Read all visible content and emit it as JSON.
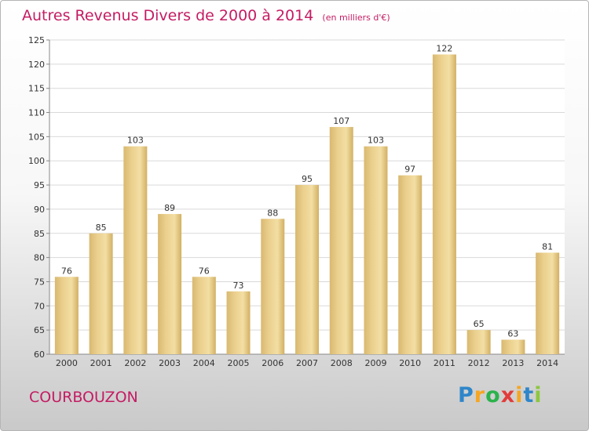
{
  "chart_data": {
    "type": "bar",
    "title": "Autres Revenus Divers de 2000 à 2014",
    "unit": "(en milliers d'€)",
    "categories": [
      "2000",
      "2001",
      "2002",
      "2003",
      "2004",
      "2005",
      "2006",
      "2007",
      "2008",
      "2009",
      "2010",
      "2011",
      "2012",
      "2013",
      "2014"
    ],
    "values": [
      76,
      85,
      103,
      89,
      76,
      73,
      88,
      95,
      107,
      103,
      97,
      122,
      65,
      63,
      81
    ],
    "ylim": [
      60,
      125
    ],
    "yticks": [
      60,
      65,
      70,
      75,
      80,
      85,
      90,
      95,
      100,
      105,
      110,
      115,
      120,
      125
    ],
    "grid": true,
    "legend": "none",
    "bar_color": "#ebd08e",
    "grid_color": "#d9d9d9"
  },
  "footer": {
    "city": "COURBOUZON",
    "logo_letters": [
      "P",
      "r",
      "o",
      "x",
      "i",
      "t",
      "i"
    ],
    "logo_colors": [
      "#2f86c9",
      "#f5a623",
      "#2bb24c",
      "#e23b3b",
      "#f5a623",
      "#2f86c9",
      "#8dc63f"
    ]
  }
}
